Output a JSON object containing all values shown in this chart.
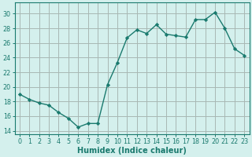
{
  "x": [
    0,
    1,
    2,
    3,
    4,
    5,
    6,
    7,
    8,
    9,
    10,
    11,
    12,
    13,
    14,
    15,
    16,
    17,
    18,
    19,
    20,
    21,
    22,
    23
  ],
  "y": [
    19.0,
    18.3,
    17.8,
    17.5,
    16.5,
    15.7,
    14.5,
    15.0,
    15.0,
    20.3,
    23.3,
    26.7,
    27.8,
    27.3,
    28.5,
    27.2,
    27.0,
    26.8,
    29.2,
    29.2,
    30.2,
    28.0,
    25.2,
    24.3
  ],
  "line_color": "#1a7a6e",
  "marker": "D",
  "marker_size": 2.2,
  "bg_color": "#d4f0ed",
  "grid_color": "#a8b8b4",
  "ylabel_ticks": [
    14,
    16,
    18,
    20,
    22,
    24,
    26,
    28,
    30
  ],
  "xlabel_ticks": [
    0,
    1,
    2,
    3,
    4,
    5,
    6,
    7,
    8,
    9,
    10,
    11,
    12,
    13,
    14,
    15,
    16,
    17,
    18,
    19,
    20,
    21,
    22,
    23
  ],
  "ylim": [
    13.5,
    31.5
  ],
  "xlim": [
    -0.5,
    23.5
  ],
  "xlabel": "Humidex (Indice chaleur)",
  "tick_fontsize": 5.8,
  "xlabel_fontsize": 7.0
}
